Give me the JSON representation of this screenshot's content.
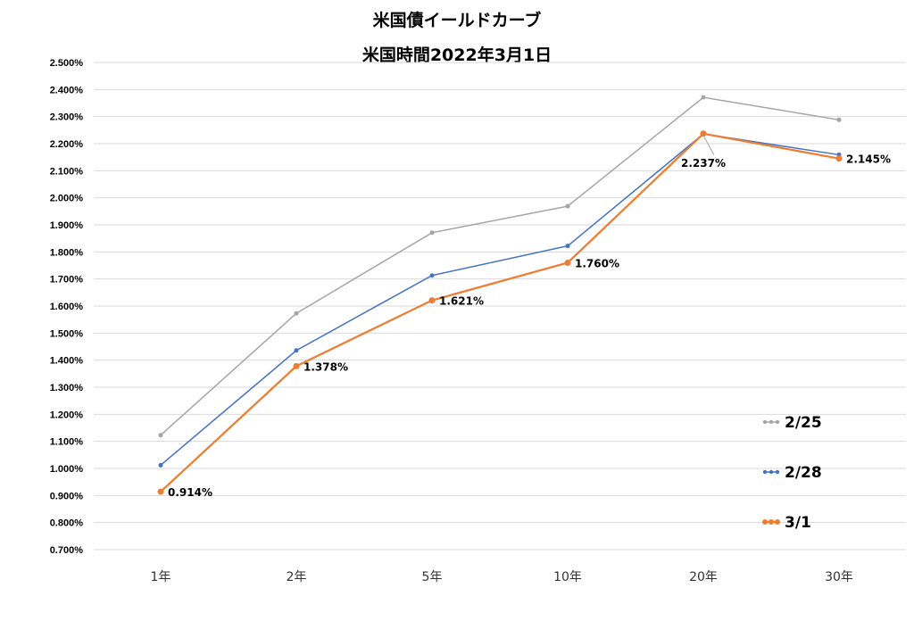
{
  "chart_data": {
    "type": "line",
    "title": "米国債イールドカーブ",
    "subtitle": "米国時間2022年3月1日",
    "categories": [
      "1年",
      "2年",
      "5年",
      "10年",
      "20年",
      "30年"
    ],
    "ylim": [
      0.7,
      2.5
    ],
    "ytick_step": 0.1,
    "y_tick_labels": [
      "0.700%",
      "0.800%",
      "0.900%",
      "1.000%",
      "1.100%",
      "1.200%",
      "1.300%",
      "1.400%",
      "1.500%",
      "1.600%",
      "1.700%",
      "1.800%",
      "1.900%",
      "2.000%",
      "2.100%",
      "2.200%",
      "2.300%",
      "2.400%",
      "2.500%"
    ],
    "grid": true,
    "legend_position": "bottom-right",
    "series": [
      {
        "name": "2/25",
        "color": "#a5a5a5",
        "values": [
          1.123,
          1.573,
          1.871,
          1.969,
          2.371,
          2.288
        ]
      },
      {
        "name": "2/28",
        "color": "#4472c4",
        "values": [
          1.012,
          1.436,
          1.713,
          1.822,
          2.236,
          2.159
        ]
      },
      {
        "name": "3/1",
        "color": "#ed7d31",
        "values": [
          0.914,
          1.378,
          1.621,
          1.76,
          2.237,
          2.145
        ]
      }
    ],
    "data_labels": [
      {
        "series": "3/1",
        "index": 0,
        "text": "0.914%"
      },
      {
        "series": "3/1",
        "index": 1,
        "text": "1.378%"
      },
      {
        "series": "3/1",
        "index": 2,
        "text": "1.621%"
      },
      {
        "series": "3/1",
        "index": 3,
        "text": "1.760%"
      },
      {
        "series": "3/1",
        "index": 4,
        "text": "2.237%"
      },
      {
        "series": "3/1",
        "index": 5,
        "text": "2.145%"
      }
    ]
  }
}
